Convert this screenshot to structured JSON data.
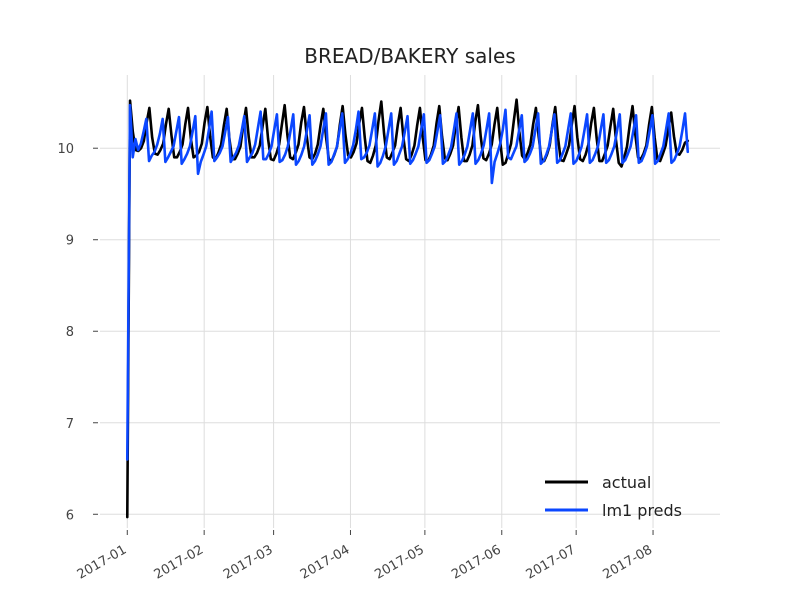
{
  "chart_data": {
    "type": "line",
    "title": "BREAD/BAKERY sales",
    "xlabel": "",
    "ylabel": "",
    "x_start": "2017-01-01",
    "x_end": "2017-08-15",
    "xlim": [
      "2016-12-21",
      "2017-08-28"
    ],
    "ylim": [
      5.85,
      10.8
    ],
    "x_ticks": [
      "2017-01",
      "2017-02",
      "2017-03",
      "2017-04",
      "2017-05",
      "2017-06",
      "2017-07",
      "2017-08"
    ],
    "y_ticks": [
      6,
      7,
      8,
      9,
      10
    ],
    "grid": true,
    "legend_position": "bottom-right",
    "series": [
      {
        "name": "actual",
        "color": "#000000",
        "values": [
          5.97,
          10.52,
          10.18,
          9.98,
          9.97,
          10.0,
          10.08,
          10.28,
          10.44,
          10.12,
          9.94,
          9.93,
          9.98,
          10.05,
          10.26,
          10.43,
          10.14,
          9.9,
          9.9,
          9.96,
          10.04,
          10.26,
          10.44,
          10.11,
          9.9,
          9.92,
          9.96,
          10.05,
          10.28,
          10.45,
          10.13,
          9.9,
          9.88,
          9.95,
          10.04,
          10.25,
          10.43,
          10.1,
          9.88,
          9.88,
          9.94,
          10.02,
          10.25,
          10.44,
          10.12,
          9.9,
          9.9,
          9.95,
          10.03,
          10.24,
          10.43,
          10.1,
          9.88,
          9.87,
          9.94,
          10.04,
          10.26,
          10.47,
          10.14,
          9.9,
          9.88,
          9.95,
          10.04,
          10.28,
          10.45,
          10.13,
          9.9,
          9.88,
          9.94,
          10.04,
          10.25,
          10.43,
          10.12,
          9.88,
          9.86,
          9.93,
          10.02,
          10.26,
          10.46,
          10.15,
          9.92,
          9.9,
          9.96,
          10.05,
          10.27,
          10.44,
          10.12,
          9.86,
          9.84,
          9.92,
          10.03,
          10.3,
          10.51,
          10.16,
          9.9,
          9.88,
          9.95,
          10.03,
          10.26,
          10.44,
          10.12,
          9.88,
          9.86,
          9.93,
          10.03,
          10.25,
          10.44,
          10.12,
          9.87,
          9.86,
          9.93,
          10.03,
          10.27,
          10.46,
          10.13,
          9.89,
          9.87,
          9.94,
          10.03,
          10.26,
          10.45,
          10.12,
          9.86,
          9.86,
          9.93,
          10.03,
          10.28,
          10.47,
          10.13,
          9.89,
          9.87,
          9.94,
          10.04,
          10.26,
          10.44,
          10.1,
          9.82,
          9.84,
          9.94,
          10.05,
          10.3,
          10.53,
          10.18,
          9.92,
          9.88,
          9.95,
          10.04,
          10.26,
          10.44,
          10.13,
          9.88,
          9.86,
          9.93,
          10.03,
          10.26,
          10.45,
          10.12,
          9.87,
          9.86,
          9.94,
          10.03,
          10.26,
          10.46,
          10.12,
          9.88,
          9.86,
          9.93,
          10.04,
          10.27,
          10.44,
          10.11,
          9.86,
          9.86,
          9.94,
          10.03,
          10.24,
          10.43,
          10.09,
          9.84,
          9.8,
          9.9,
          10.02,
          10.26,
          10.46,
          10.15,
          9.9,
          9.88,
          9.94,
          10.03,
          10.26,
          10.45,
          10.12,
          9.88,
          9.86,
          9.94,
          10.03,
          10.22,
          10.39,
          10.13,
          9.94,
          9.93,
          9.98,
          10.06,
          10.08
        ]
      },
      {
        "name": "lm1 preds",
        "color": "#0b47ff",
        "values": [
          6.6,
          10.47,
          9.9,
          10.1,
          9.98,
          10.05,
          10.18,
          10.32,
          9.86,
          9.92,
          9.96,
          10.04,
          10.16,
          10.32,
          9.85,
          9.9,
          9.96,
          10.02,
          10.18,
          10.34,
          9.83,
          9.88,
          9.94,
          10.02,
          10.18,
          10.35,
          9.72,
          9.85,
          9.93,
          10.02,
          10.2,
          10.4,
          9.86,
          9.9,
          9.95,
          10.02,
          10.18,
          10.34,
          9.85,
          9.9,
          9.95,
          10.03,
          10.18,
          10.35,
          9.85,
          9.9,
          9.95,
          10.04,
          10.22,
          10.4,
          9.88,
          9.88,
          9.94,
          10.02,
          10.2,
          10.37,
          9.85,
          9.87,
          9.93,
          10.02,
          10.19,
          10.37,
          9.82,
          9.86,
          9.93,
          10.02,
          10.19,
          10.36,
          9.82,
          9.86,
          9.93,
          10.02,
          10.2,
          10.38,
          9.82,
          9.85,
          9.93,
          10.01,
          10.19,
          10.38,
          9.84,
          9.88,
          9.94,
          10.03,
          10.2,
          10.4,
          9.88,
          9.9,
          9.95,
          10.03,
          10.2,
          10.38,
          9.8,
          9.84,
          9.92,
          10.02,
          10.2,
          10.38,
          9.82,
          9.86,
          9.94,
          10.02,
          10.18,
          10.35,
          9.83,
          9.87,
          9.94,
          10.02,
          10.2,
          10.37,
          9.84,
          9.87,
          9.94,
          10.02,
          10.19,
          10.36,
          9.83,
          9.86,
          9.93,
          10.01,
          10.19,
          10.38,
          9.82,
          9.86,
          9.93,
          10.02,
          10.2,
          10.38,
          9.83,
          9.87,
          9.94,
          10.03,
          10.2,
          10.38,
          9.62,
          9.85,
          9.94,
          10.04,
          10.2,
          10.42,
          9.9,
          9.88,
          9.95,
          10.02,
          10.19,
          10.36,
          9.85,
          9.88,
          9.94,
          10.02,
          10.2,
          10.38,
          9.83,
          9.86,
          9.93,
          10.02,
          10.19,
          10.37,
          9.84,
          9.87,
          9.94,
          10.02,
          10.2,
          10.38,
          9.83,
          9.86,
          9.93,
          10.02,
          10.19,
          10.37,
          9.84,
          9.87,
          9.94,
          10.02,
          10.2,
          10.37,
          9.84,
          9.87,
          9.94,
          10.02,
          10.19,
          10.37,
          9.84,
          9.87,
          9.94,
          10.02,
          10.19,
          10.36,
          9.84,
          9.86,
          9.93,
          10.02,
          10.19,
          10.36,
          9.83,
          9.86,
          9.94,
          10.02,
          10.2,
          10.38,
          9.84,
          9.87,
          9.94,
          10.02,
          10.19,
          10.38,
          9.96
        ]
      }
    ]
  }
}
